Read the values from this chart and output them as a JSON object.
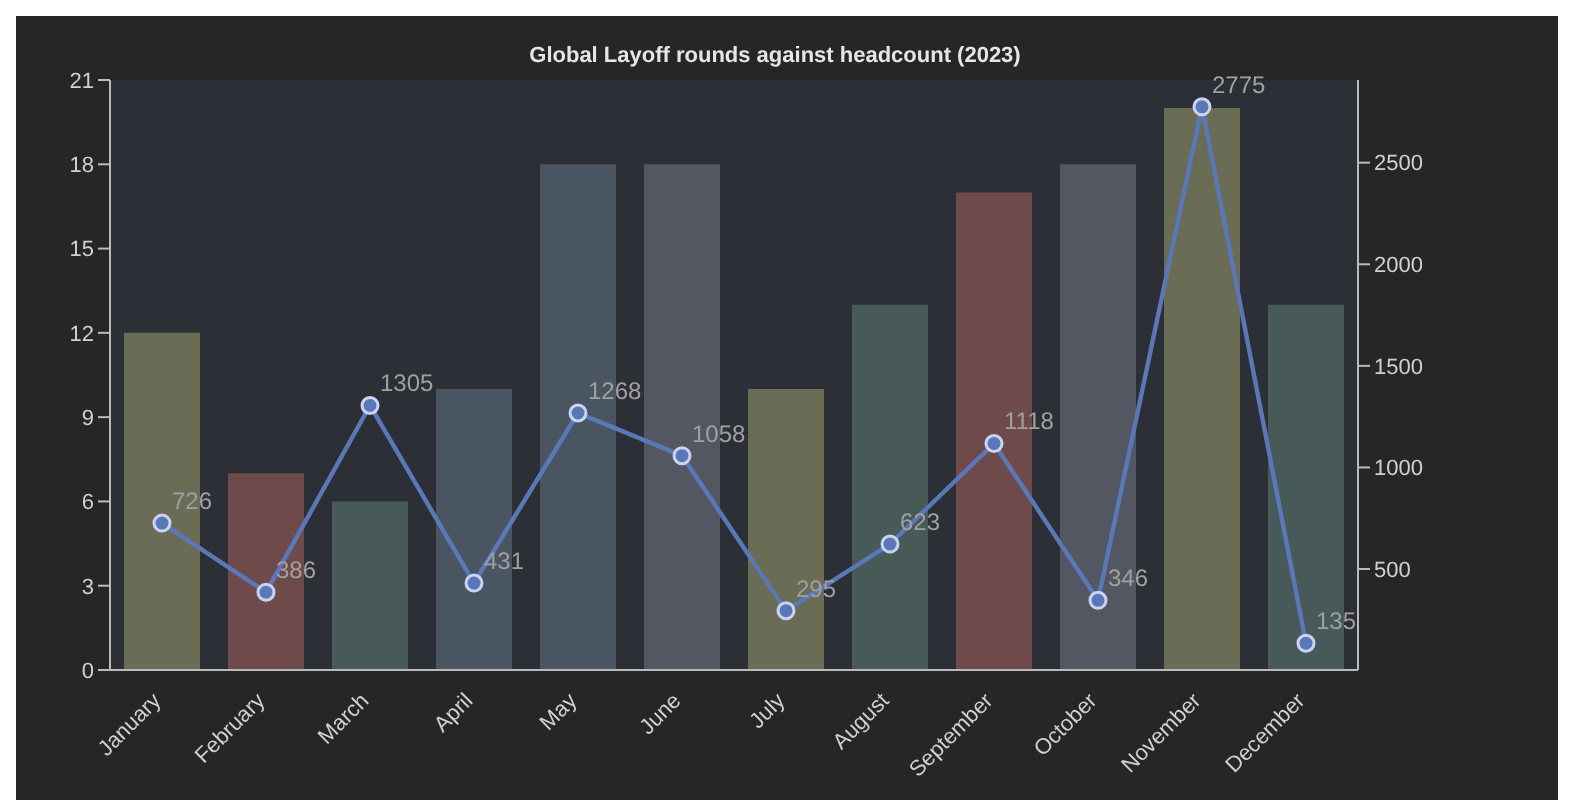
{
  "chart_data": {
    "type": "bar",
    "title": "Global Layoff rounds against headcount (2023)",
    "categories": [
      "January",
      "February",
      "March",
      "April",
      "May",
      "June",
      "July",
      "August",
      "September",
      "October",
      "November",
      "December"
    ],
    "series": [
      {
        "type": "bar",
        "colors": [
          "#77775c",
          "#7a504e",
          "#4d625e",
          "#4f5d69",
          "#4f5d69",
          "#5b5e68",
          "#77775c",
          "#4d625e",
          "#7a504e",
          "#5b5e68",
          "#77775c",
          "#4d625e"
        ],
        "values": [
          12,
          7,
          6,
          10,
          18,
          18,
          10,
          13,
          17,
          18,
          20,
          13
        ]
      },
      {
        "type": "line",
        "axis": "y2",
        "color": "#5a78b8",
        "marker": "circle",
        "values": [
          726,
          386,
          1305,
          431,
          1268,
          1058,
          295,
          623,
          1118,
          346,
          2775,
          135
        ],
        "value_labels": [
          "726",
          "386",
          "1305",
          "431",
          "1268",
          "1058",
          "295",
          "623",
          "1118",
          "346",
          "2775",
          "135"
        ]
      }
    ],
    "ylim": [
      0,
      21
    ],
    "yticks": [
      0,
      3,
      6,
      9,
      12,
      15,
      18,
      21
    ],
    "y2lim": [
      3,
      2907
    ],
    "y2ticks": [
      500,
      1000,
      1500,
      2000,
      2500
    ],
    "grid": false,
    "legend": false
  }
}
